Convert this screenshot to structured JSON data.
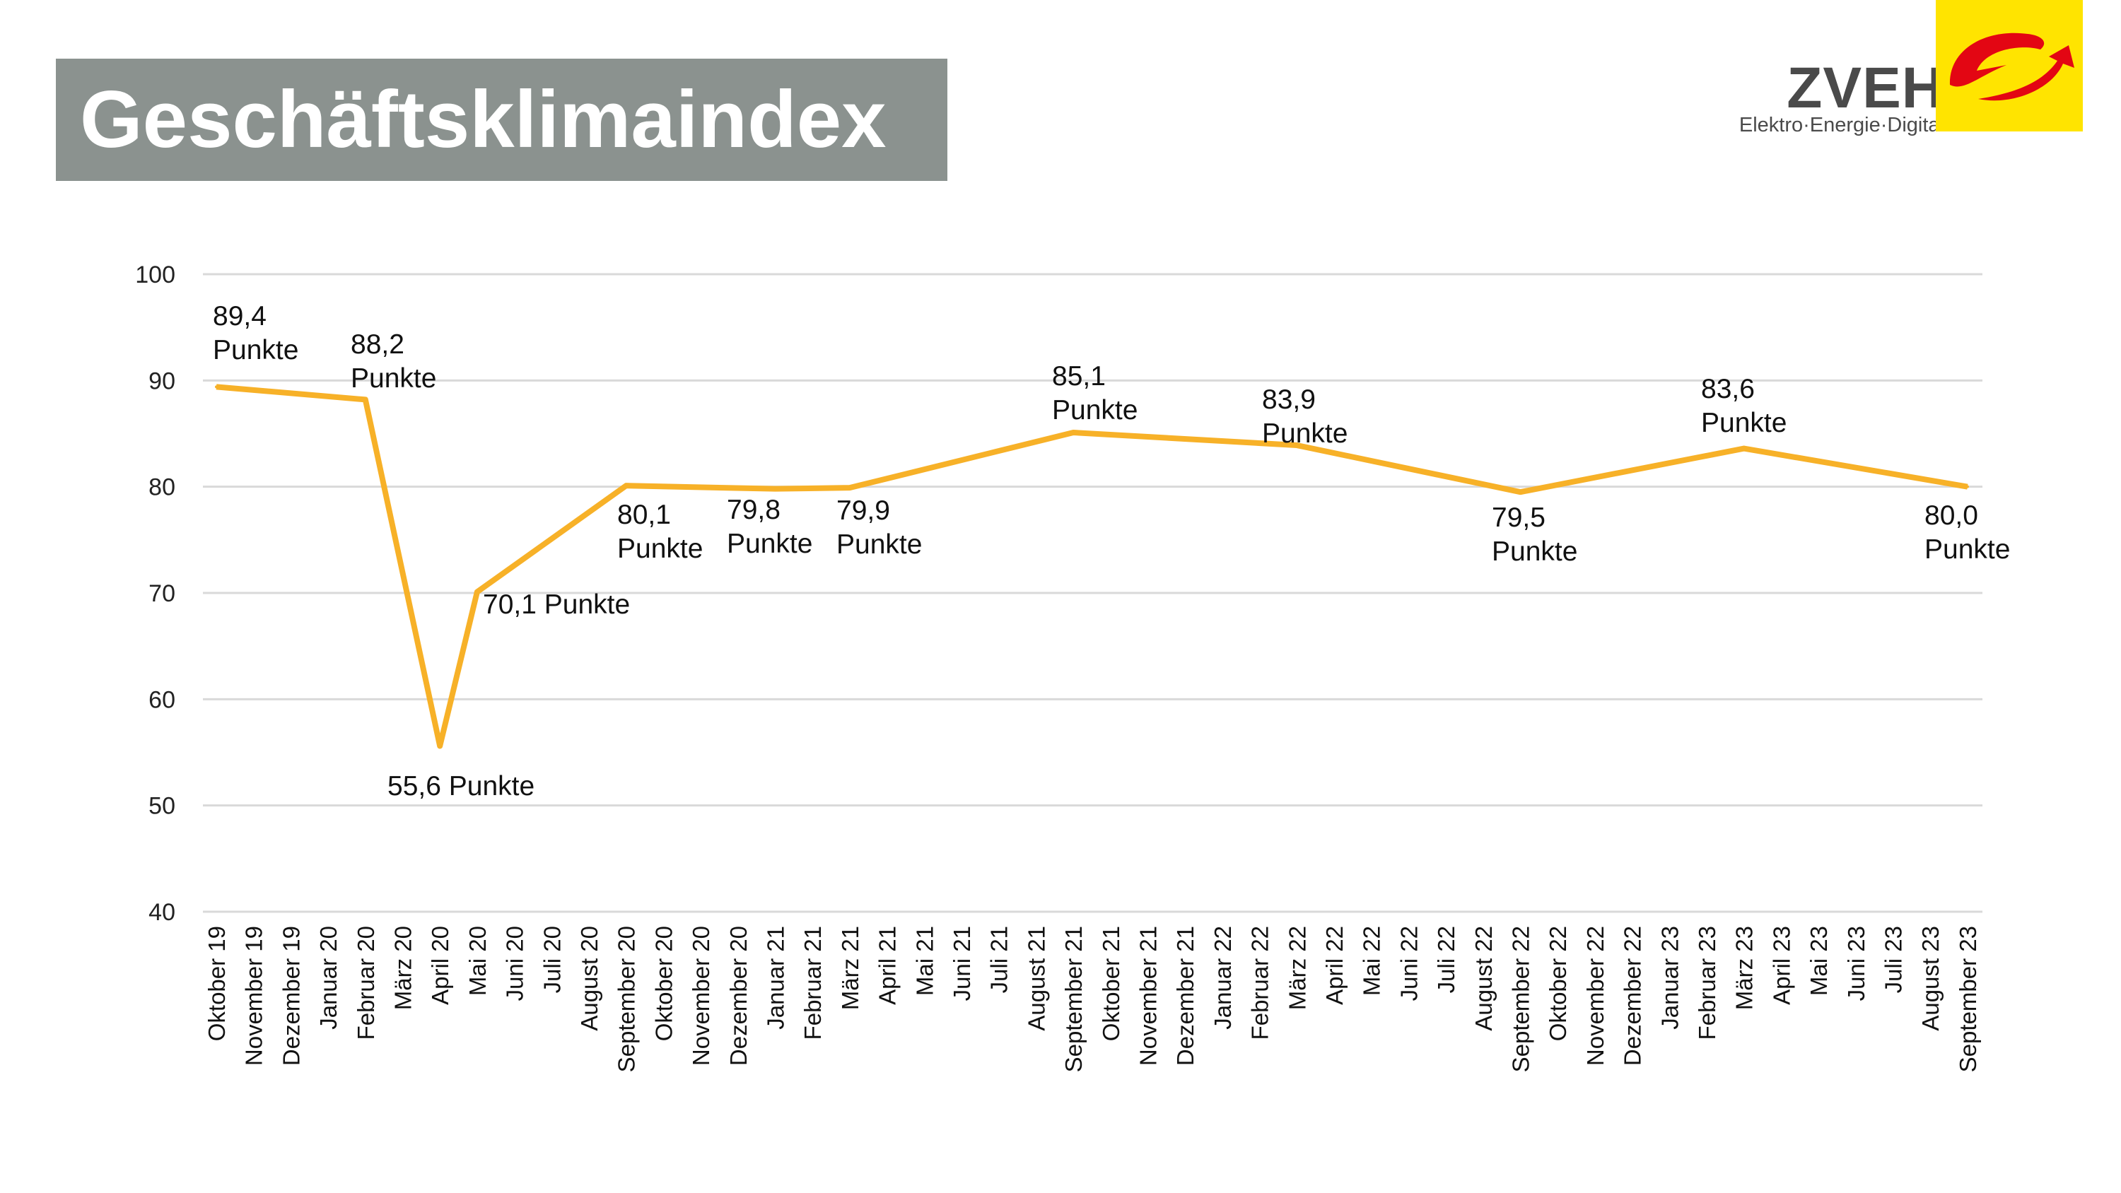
{
  "header": {
    "title": "Geschäftsklimaindex"
  },
  "logo": {
    "brand": "ZVEH",
    "tagline": "Elektro·Energie·Digital",
    "colors": {
      "square": "#ffe400",
      "swoosh": "#e30613"
    }
  },
  "colors": {
    "title_box": "#8b928f",
    "line": "#f7b128",
    "grid": "#d9d9d9"
  },
  "chart_data": {
    "type": "line",
    "title": "",
    "xlabel": "",
    "ylabel": "",
    "ylim": [
      40,
      100
    ],
    "yticks": [
      40,
      50,
      60,
      70,
      80,
      90,
      100
    ],
    "grid": true,
    "categories": [
      "Oktober 19",
      "November 19",
      "Dezember 19",
      "Januar 20",
      "Februar 20",
      "März 20",
      "April 20",
      "Mai 20",
      "Juni 20",
      "Juli 20",
      "August 20",
      "September 20",
      "Oktober 20",
      "November 20",
      "Dezember 20",
      "Januar 21",
      "Februar 21",
      "März 21",
      "April 21",
      "Mai 21",
      "Juni 21",
      "Juli 21",
      "August 21",
      "September 21",
      "Oktober 21",
      "November 21",
      "Dezember 21",
      "Januar 22",
      "Februar 22",
      "März 22",
      "April 22",
      "Mai 22",
      "Juni 22",
      "Juli 22",
      "August 22",
      "September 22",
      "Oktober 22",
      "November 22",
      "Dezember 22",
      "Januar 23",
      "Februar 23",
      "März 23",
      "April 23",
      "Mai 23",
      "Juni 23",
      "Juli 23",
      "August 23",
      "September 23"
    ],
    "series": [
      {
        "points": [
          {
            "x": "Oktober 19",
            "y": 89.4
          },
          {
            "x": "Februar 20",
            "y": 88.2
          },
          {
            "x": "April 20",
            "y": 55.6
          },
          {
            "x": "Mai 20",
            "y": 70.1
          },
          {
            "x": "September 20",
            "y": 80.1
          },
          {
            "x": "Januar 21",
            "y": 79.8
          },
          {
            "x": "März 21",
            "y": 79.9
          },
          {
            "x": "September 21",
            "y": 85.1
          },
          {
            "x": "März 22",
            "y": 83.9
          },
          {
            "x": "September 22",
            "y": 79.5
          },
          {
            "x": "März 23",
            "y": 83.6
          },
          {
            "x": "September 23",
            "y": 80.0
          }
        ]
      }
    ],
    "data_labels": [
      {
        "x": "Oktober 19",
        "lines": [
          "89,4",
          "Punkte"
        ]
      },
      {
        "x": "Februar 20",
        "lines": [
          "88,2",
          "Punkte"
        ]
      },
      {
        "x": "April 20",
        "lines": [
          "55,6 Punkte"
        ]
      },
      {
        "x": "Mai 20",
        "lines": [
          "70,1 Punkte"
        ]
      },
      {
        "x": "September 20",
        "lines": [
          "80,1",
          "Punkte"
        ]
      },
      {
        "x": "Januar 21",
        "lines": [
          "79,8",
          "Punkte"
        ]
      },
      {
        "x": "März 21",
        "lines": [
          "79,9",
          "Punkte"
        ]
      },
      {
        "x": "September 21",
        "lines": [
          "85,1",
          "Punkte"
        ]
      },
      {
        "x": "März 22",
        "lines": [
          "83,9",
          "Punkte"
        ]
      },
      {
        "x": "September 22",
        "lines": [
          "79,5",
          "Punkte"
        ]
      },
      {
        "x": "März 23",
        "lines": [
          "83,6",
          "Punkte"
        ]
      },
      {
        "x": "September 23",
        "lines": [
          "80,0",
          "Punkte"
        ]
      }
    ]
  }
}
